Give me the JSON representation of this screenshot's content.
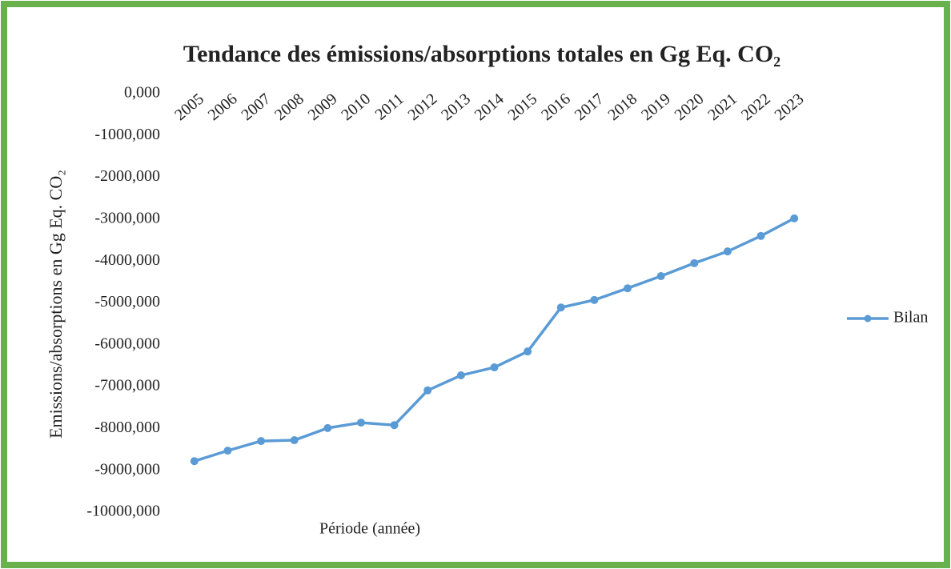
{
  "chart_data": {
    "type": "line",
    "title": "Tendance des émissions/absorptions  totales en Gg Eq. CO₂",
    "x_label": "Période (année)",
    "y_label": "Emissions/absorptions en Gg Eq. CO₂",
    "categories": [
      "2005",
      "2006",
      "2007",
      "2008",
      "2009",
      "2010",
      "2011",
      "2012",
      "2013",
      "2014",
      "2015",
      "2016",
      "2017",
      "2018",
      "2019",
      "2020",
      "2021",
      "2022",
      "2023"
    ],
    "series": [
      {
        "name": "Bilan",
        "color": "#5b9bd5",
        "values": [
          -8780,
          -8530,
          -8300,
          -8280,
          -7990,
          -7860,
          -7920,
          -7090,
          -6730,
          -6540,
          -6160,
          -5110,
          -4930,
          -4650,
          -4360,
          -4050,
          -3770,
          -3400,
          -2980
        ]
      }
    ],
    "ylim": [
      -10000,
      0
    ],
    "yticks": [
      {
        "value": 0,
        "label": "0,000"
      },
      {
        "value": -1000,
        "label": "-1000,000"
      },
      {
        "value": -2000,
        "label": "-2000,000"
      },
      {
        "value": -3000,
        "label": "-3000,000"
      },
      {
        "value": -4000,
        "label": "-4000,000"
      },
      {
        "value": -5000,
        "label": "-5000,000"
      },
      {
        "value": -6000,
        "label": "-6000,000"
      },
      {
        "value": -7000,
        "label": "-7000,000"
      },
      {
        "value": -8000,
        "label": "-8000,000"
      },
      {
        "value": -9000,
        "label": "-9000,000"
      },
      {
        "value": -10000,
        "label": "-10000,000"
      }
    ],
    "grid": false,
    "legend": "right"
  }
}
